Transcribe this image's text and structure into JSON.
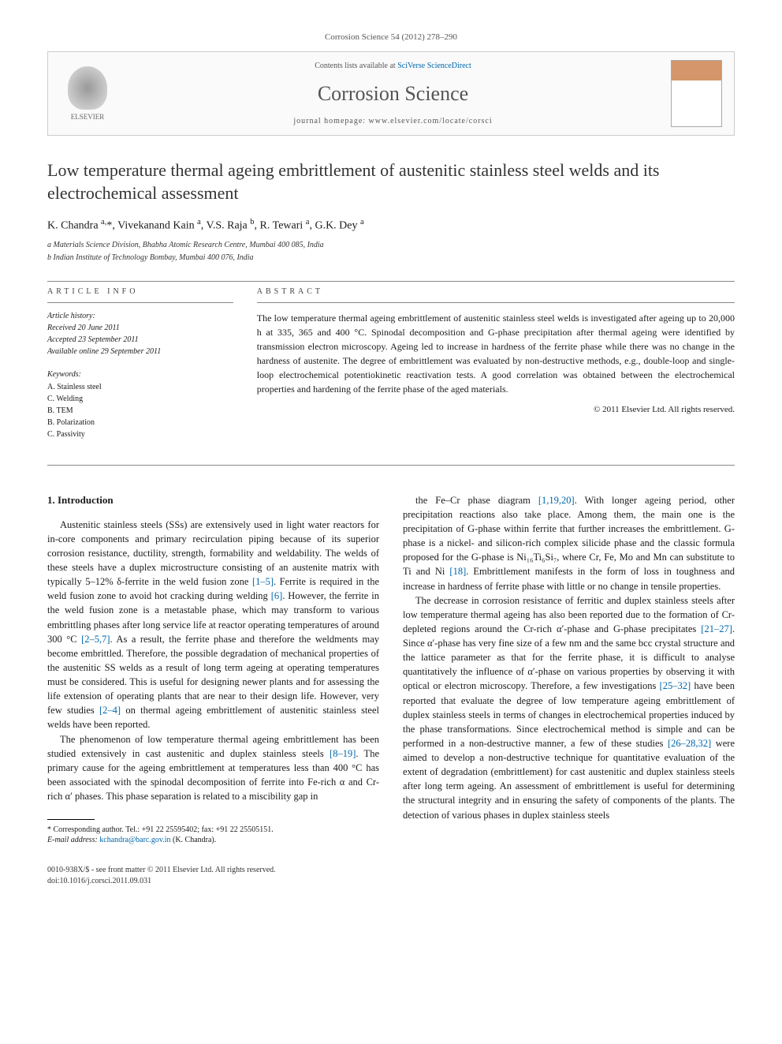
{
  "header": {
    "citation": "Corrosion Science 54 (2012) 278–290"
  },
  "banner": {
    "publisher": "ELSEVIER",
    "contents_prefix": "Contents lists available at ",
    "contents_link": "SciVerse ScienceDirect",
    "journal": "Corrosion Science",
    "homepage_prefix": "journal homepage: ",
    "homepage_url": "www.elsevier.com/locate/corsci"
  },
  "title": "Low temperature thermal ageing embrittlement of austenitic stainless steel welds and its electrochemical assessment",
  "authors_html": "K. Chandra <sup>a,</sup>*, Vivekanand Kain <sup>a</sup>, V.S. Raja <sup>b</sup>, R. Tewari <sup>a</sup>, G.K. Dey <sup>a</sup>",
  "affiliations": [
    "a Materials Science Division, Bhabha Atomic Research Centre, Mumbai 400 085, India",
    "b Indian Institute of Technology Bombay, Mumbai 400 076, India"
  ],
  "article_info": {
    "label": "article info",
    "history_head": "Article history:",
    "received": "Received 20 June 2011",
    "accepted": "Accepted 23 September 2011",
    "online": "Available online 29 September 2011",
    "keywords_head": "Keywords:",
    "keywords": [
      "A. Stainless steel",
      "C. Welding",
      "B. TEM",
      "B. Polarization",
      "C. Passivity"
    ]
  },
  "abstract": {
    "label": "abstract",
    "text": "The low temperature thermal ageing embrittlement of austenitic stainless steel welds is investigated after ageing up to 20,000 h at 335, 365 and 400 °C. Spinodal decomposition and G-phase precipitation after thermal ageing were identified by transmission electron microscopy. Ageing led to increase in hardness of the ferrite phase while there was no change in the hardness of austenite. The degree of embrittlement was evaluated by non-destructive methods, e.g., double-loop and single-loop electrochemical potentiokinetic reactivation tests. A good correlation was obtained between the electrochemical properties and hardening of the ferrite phase of the aged materials.",
    "copyright": "© 2011 Elsevier Ltd. All rights reserved."
  },
  "body": {
    "section_heading": "1. Introduction",
    "left_paras": [
      "Austenitic stainless steels (SSs) are extensively used in light water reactors for in-core components and primary recirculation piping because of its superior corrosion resistance, ductility, strength, formability and weldability. The welds of these steels have a duplex microstructure consisting of an austenite matrix with typically 5–12% δ-ferrite in the weld fusion zone [1–5]. Ferrite is required in the weld fusion zone to avoid hot cracking during welding [6]. However, the ferrite in the weld fusion zone is a metastable phase, which may transform to various embrittling phases after long service life at reactor operating temperatures of around 300 °C [2–5,7]. As a result, the ferrite phase and therefore the weldments may become embrittled. Therefore, the possible degradation of mechanical properties of the austenitic SS welds as a result of long term ageing at operating temperatures must be considered. This is useful for designing newer plants and for assessing the life extension of operating plants that are near to their design life. However, very few studies [2–4] on thermal ageing embrittlement of austenitic stainless steel welds have been reported.",
      "The phenomenon of low temperature thermal ageing embrittlement has been studied extensively in cast austenitic and duplex stainless steels [8–19]. The primary cause for the ageing embrittlement at temperatures less than 400 °C has been associated with the spinodal decomposition of ferrite into Fe-rich α and Cr-rich α′ phases. This phase separation is related to a miscibility gap in"
    ],
    "right_paras": [
      "the Fe–Cr phase diagram [1,19,20]. With longer ageing period, other precipitation reactions also take place. Among them, the main one is the precipitation of G-phase within ferrite that further increases the embrittlement. G-phase is a nickel- and silicon-rich complex silicide phase and the classic formula proposed for the G-phase is Ni₁₆Ti₆Si₇, where Cr, Fe, Mo and Mn can substitute to Ti and Ni [18]. Embrittlement manifests in the form of loss in toughness and increase in hardness of ferrite phase with little or no change in tensile properties.",
      "The decrease in corrosion resistance of ferritic and duplex stainless steels after low temperature thermal ageing has also been reported due to the formation of Cr-depleted regions around the Cr-rich α′-phase and G-phase precipitates [21–27]. Since α′-phase has very fine size of a few nm and the same bcc crystal structure and the lattice parameter as that for the ferrite phase, it is difficult to analyse quantitatively the influence of α′-phase on various properties by observing it with optical or electron microscopy. Therefore, a few investigations [25–32] have been reported that evaluate the degree of low temperature ageing embrittlement of duplex stainless steels in terms of changes in electrochemical properties induced by the phase transformations. Since electrochemical method is simple and can be performed in a non-destructive manner, a few of these studies [26–28,32] were aimed to develop a non-destructive technique for quantitative evaluation of the extent of degradation (embrittlement) for cast austenitic and duplex stainless steels after long term ageing. An assessment of embrittlement is useful for determining the structural integrity and in ensuring the safety of components of the plants. The detection of various phases in duplex stainless steels"
    ]
  },
  "footnote": {
    "corresponding": "* Corresponding author. Tel.: +91 22 25595402; fax: +91 22 25505151.",
    "email_label": "E-mail address:",
    "email": "kchandra@barc.gov.in",
    "email_suffix": "(K. Chandra)."
  },
  "footer": {
    "line1": "0010-938X/$ - see front matter © 2011 Elsevier Ltd. All rights reserved.",
    "line2": "doi:10.1016/j.corsci.2011.09.031"
  },
  "colors": {
    "link": "#0066aa",
    "text": "#1a1a1a",
    "muted": "#555555",
    "border": "#cccccc"
  }
}
